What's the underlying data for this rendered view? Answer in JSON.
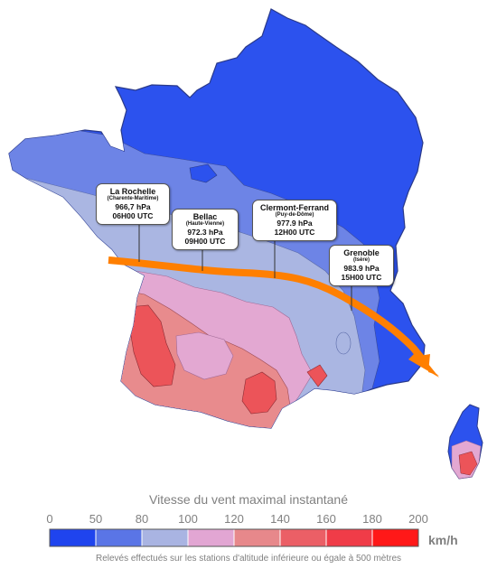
{
  "callouts": [
    {
      "city": "La Rochelle",
      "dept": "(Charente-Maritime)",
      "pressure": "966,7 hPa",
      "time": "06H00 UTC"
    },
    {
      "city": "Bellac",
      "dept": "(Haute-Vienne)",
      "pressure": "972.3 hPa",
      "time": "09H00 UTC"
    },
    {
      "city": "Clermont-Ferrand",
      "dept": "(Puy-de-Dôme)",
      "pressure": "977.9 hPa",
      "time": "12H00 UTC"
    },
    {
      "city": "Grenoble",
      "dept": "(Isère)",
      "pressure": "983.9 hPa",
      "time": "15H00 UTC"
    }
  ],
  "legend": {
    "title": "Vitesse du vent maximal instantané",
    "ticks": [
      "0",
      "50",
      "80",
      "100",
      "120",
      "140",
      "160",
      "180",
      "200"
    ],
    "unit": "km/h",
    "note": "Relevés effectués sur les stations d'altitude inférieure ou égale à 500 mètres",
    "colors": [
      "#1f44ee",
      "#5a75e6",
      "#a9b4e2",
      "#e2a6d3",
      "#e7888b",
      "#eb5f66",
      "#f03c48",
      "#ff1818"
    ]
  },
  "colors": {
    "track": "#ff7f00",
    "sea_blue": "#2c52ee",
    "mid_blue": "#6d84e6",
    "pale_blue": "#aab6e2",
    "pink": "#e3a8d2",
    "salmon": "#e88b8d",
    "red": "#ec5459"
  }
}
